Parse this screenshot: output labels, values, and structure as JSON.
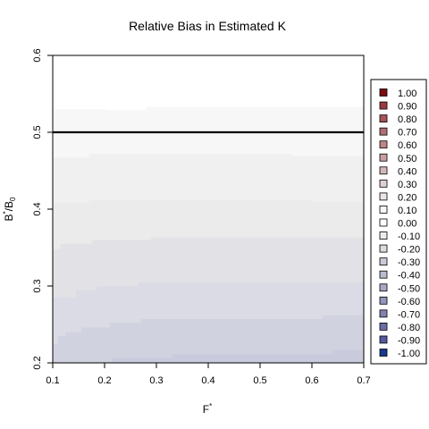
{
  "chart_data": {
    "type": "heatmap",
    "title": "Relative Bias in Estimated K",
    "xlabel": "F*",
    "ylabel": "B*/B0",
    "xlim": [
      0.1,
      0.7
    ],
    "ylim": [
      0.2,
      0.6
    ],
    "x_ticks": [
      "0.1",
      "0.2",
      "0.3",
      "0.4",
      "0.5",
      "0.6",
      "0.7"
    ],
    "y_ticks": [
      "0.2",
      "0.3",
      "0.4",
      "0.5",
      "0.6"
    ],
    "reference_line_y": 0.5,
    "grid": false,
    "legend_position": "right",
    "legend": {
      "levels": [
        "1.00",
        "0.90",
        "0.80",
        "0.70",
        "0.60",
        "0.50",
        "0.40",
        "0.30",
        "0.20",
        "0.10",
        "0.00",
        "-0.10",
        "-0.20",
        "-0.30",
        "-0.40",
        "-0.50",
        "-0.60",
        "-0.70",
        "-0.80",
        "-0.90",
        "-1.00"
      ],
      "colors": [
        "#7b0c12",
        "#9a3a3e",
        "#a65457",
        "#b26d70",
        "#bd8588",
        "#c99fa1",
        "#d4b8b9",
        "#dfd0d1",
        "#ebe5e5",
        "#f7f7f7",
        "#ffffff",
        "#ebebef",
        "#dadbe3",
        "#c9cad8",
        "#b8bace",
        "#a7a9c4",
        "#9496ba",
        "#8183b0",
        "#6a6ea6",
        "#535a9e",
        "#153a8e"
      ]
    },
    "contour_bands": [
      {
        "level": "-0.10",
        "color": "#f7f7f7",
        "boundary": [
          [
            0.1,
            0.53
          ],
          [
            0.205,
            0.53
          ],
          [
            0.205,
            0.529
          ],
          [
            0.28,
            0.529
          ],
          [
            0.28,
            0.533
          ],
          [
            0.7,
            0.533
          ]
        ]
      },
      {
        "level": "-0.15",
        "color": "#f0f0f0",
        "boundary": [
          [
            0.1,
            0.467
          ],
          [
            0.17,
            0.467
          ],
          [
            0.17,
            0.472
          ],
          [
            0.56,
            0.472
          ],
          [
            0.56,
            0.469
          ],
          [
            0.7,
            0.469
          ]
        ]
      },
      {
        "level": "-0.20",
        "color": "#ebebec",
        "boundary": [
          [
            0.1,
            0.408
          ],
          [
            0.17,
            0.408
          ],
          [
            0.17,
            0.412
          ],
          [
            0.6,
            0.412
          ],
          [
            0.6,
            0.41
          ],
          [
            0.7,
            0.41
          ]
        ]
      },
      {
        "level": "-0.25",
        "color": "#e2e2e6",
        "boundary": [
          [
            0.1,
            0.348
          ],
          [
            0.115,
            0.348
          ],
          [
            0.115,
            0.355
          ],
          [
            0.175,
            0.355
          ],
          [
            0.175,
            0.36
          ],
          [
            0.29,
            0.36
          ],
          [
            0.29,
            0.363
          ],
          [
            0.7,
            0.363
          ]
        ]
      },
      {
        "level": "-0.30",
        "color": "#dadbe4",
        "boundary": [
          [
            0.1,
            0.285
          ],
          [
            0.145,
            0.285
          ],
          [
            0.145,
            0.295
          ],
          [
            0.185,
            0.295
          ],
          [
            0.185,
            0.3
          ],
          [
            0.265,
            0.3
          ],
          [
            0.265,
            0.305
          ],
          [
            0.7,
            0.305
          ]
        ]
      },
      {
        "level": "-0.35",
        "color": "#d1d2e0",
        "boundary": [
          [
            0.1,
            0.225
          ],
          [
            0.11,
            0.225
          ],
          [
            0.11,
            0.235
          ],
          [
            0.125,
            0.235
          ],
          [
            0.125,
            0.24
          ],
          [
            0.155,
            0.24
          ],
          [
            0.155,
            0.246
          ],
          [
            0.21,
            0.246
          ],
          [
            0.21,
            0.252
          ],
          [
            0.27,
            0.252
          ],
          [
            0.27,
            0.257
          ],
          [
            0.62,
            0.257
          ],
          [
            0.62,
            0.262
          ],
          [
            0.7,
            0.262
          ]
        ]
      },
      {
        "level": "-0.40",
        "color": "#c9cbdc",
        "boundary": [
          [
            0.1,
            0.201
          ],
          [
            0.215,
            0.201
          ],
          [
            0.215,
            0.206
          ],
          [
            0.33,
            0.206
          ],
          [
            0.33,
            0.211
          ],
          [
            0.64,
            0.211
          ],
          [
            0.64,
            0.217
          ],
          [
            0.7,
            0.217
          ]
        ]
      }
    ]
  }
}
